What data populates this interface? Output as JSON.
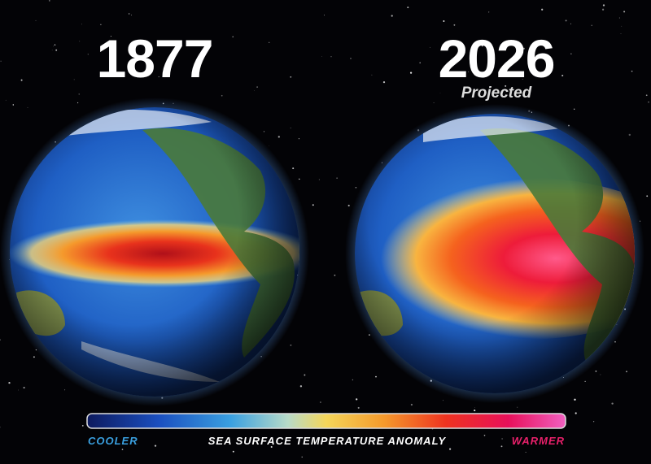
{
  "panels": [
    {
      "year": "1877"
    },
    {
      "year": "2026",
      "subtitle": "Projected"
    }
  ],
  "legend": {
    "low": "COOLER",
    "title": "SEA SURFACE TEMPERATURE ANOMALY",
    "high": "WARMER"
  }
}
